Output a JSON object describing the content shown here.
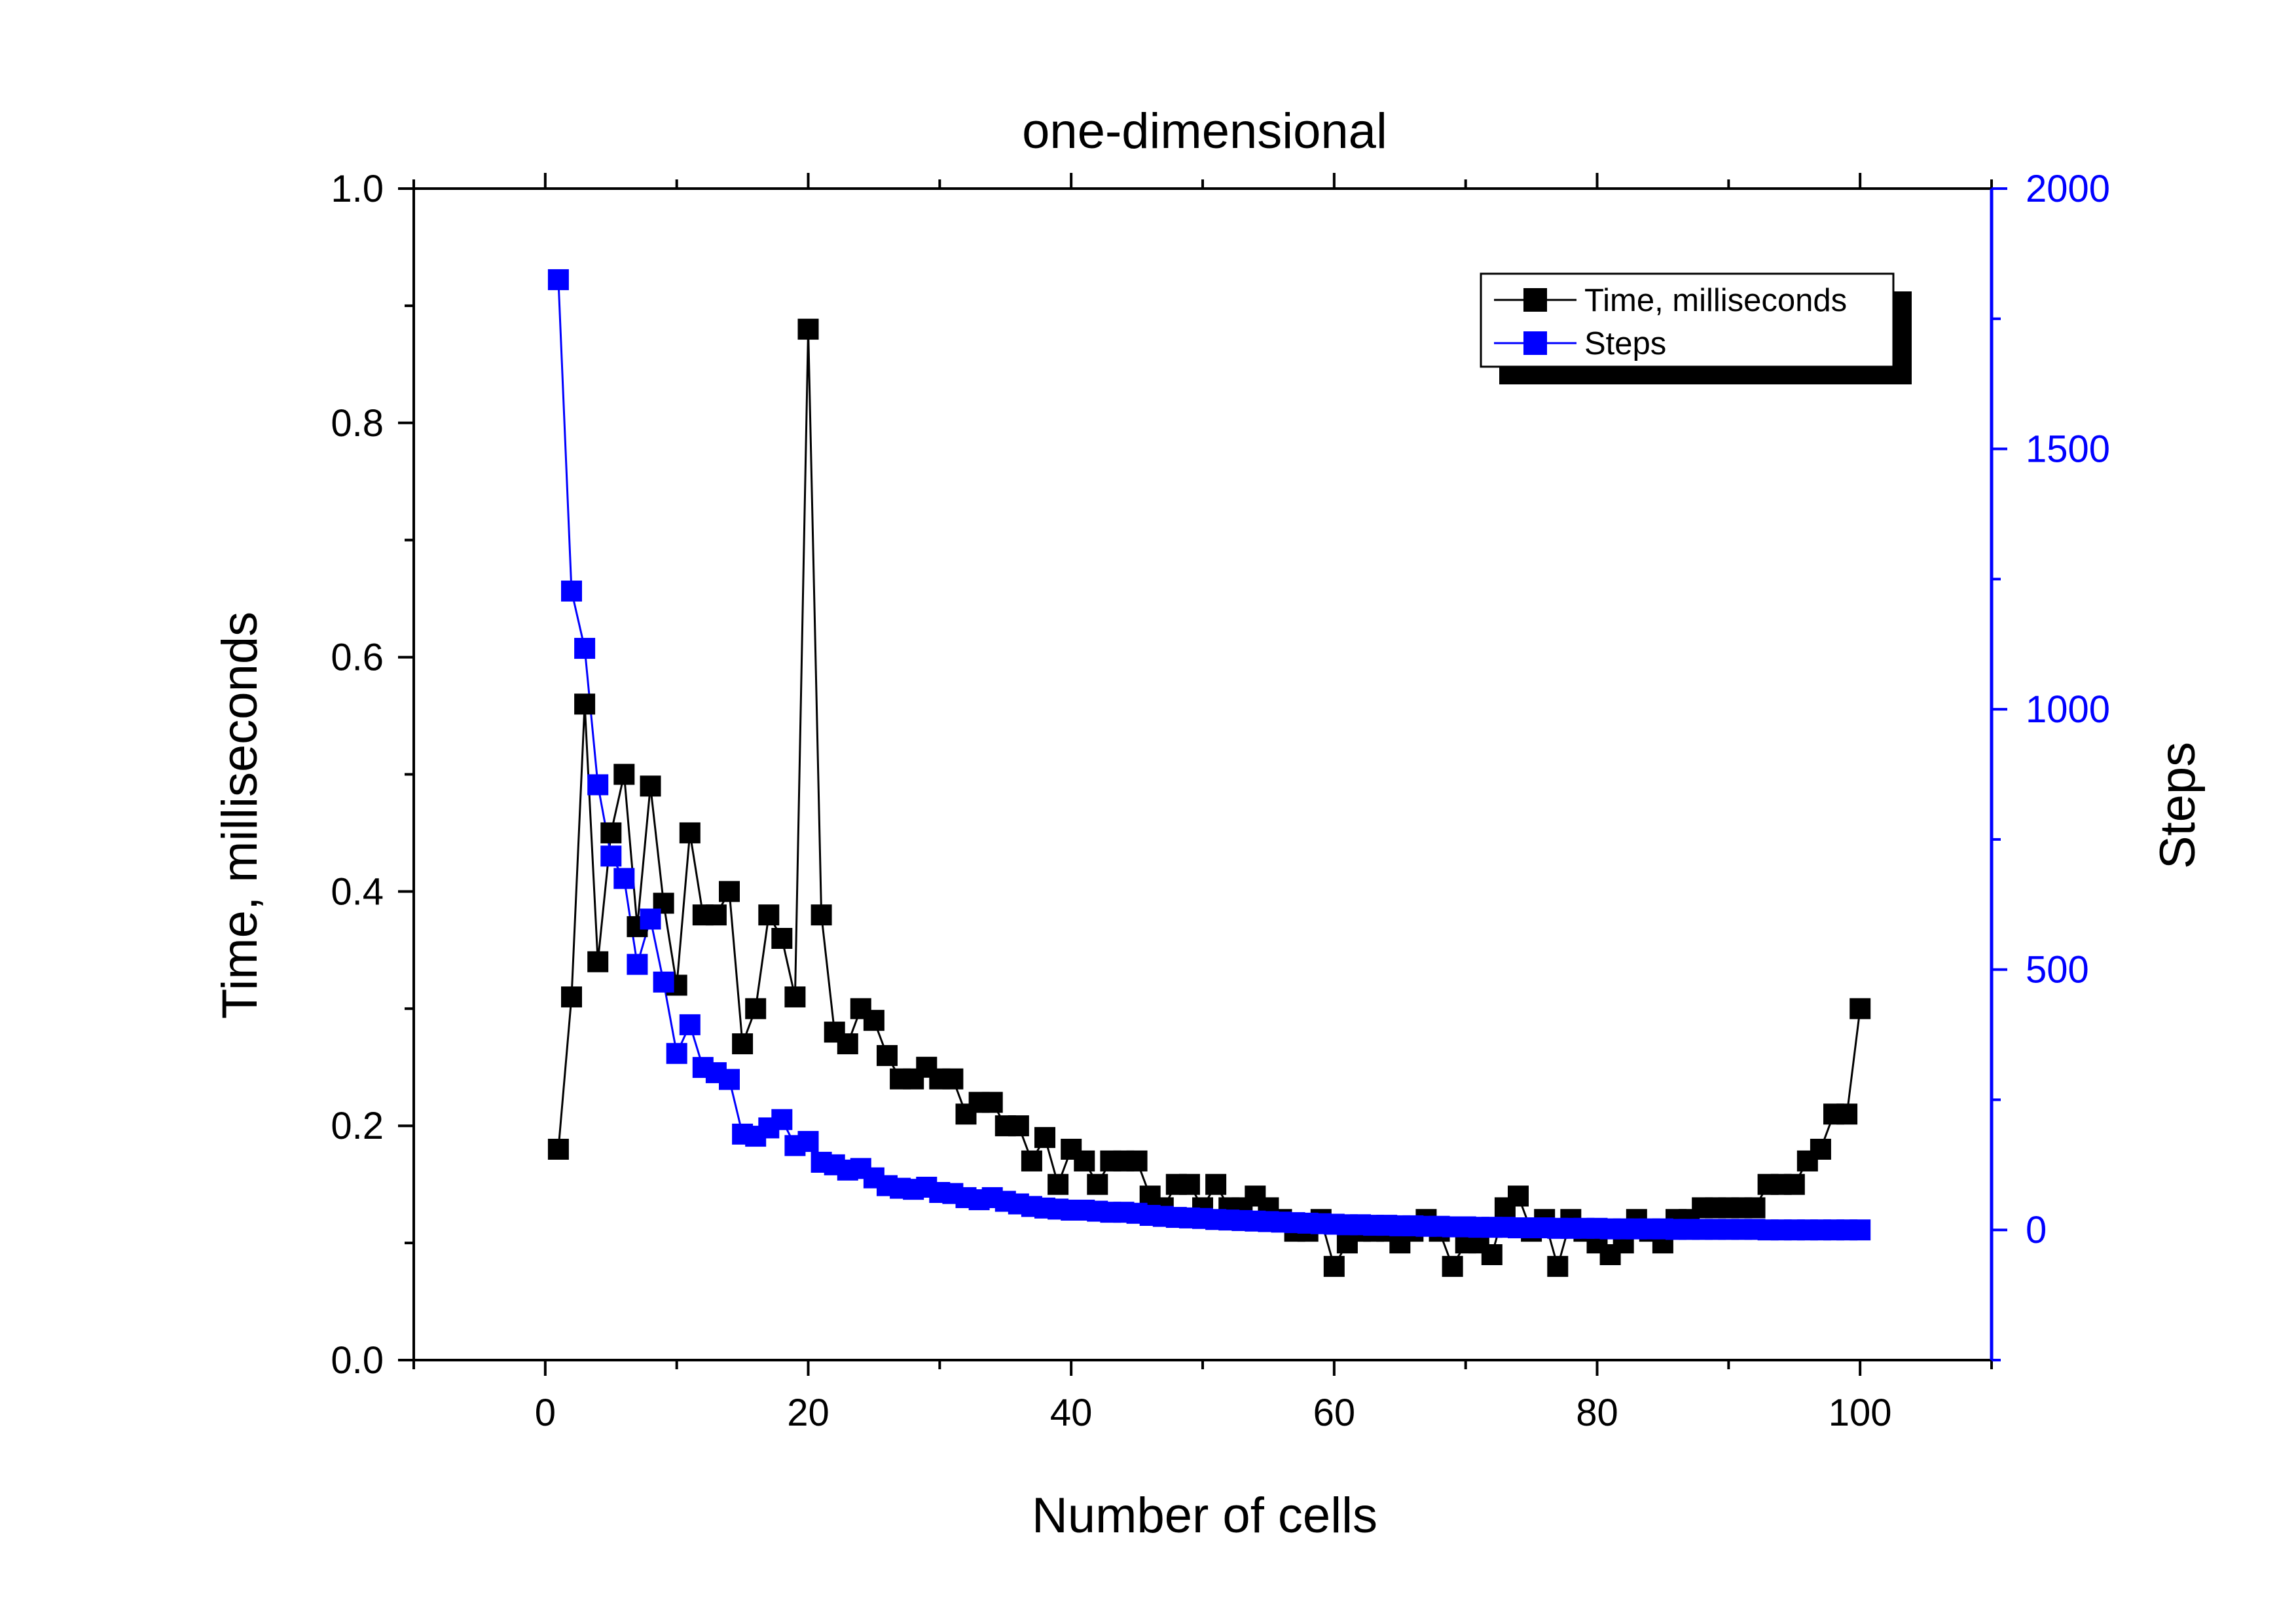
{
  "chart_data": {
    "type": "scatter",
    "title": "one-dimensional",
    "xlabel": "Number of cells",
    "ylabel": "Time, milliseconds",
    "y2label": "Steps",
    "xlim": [
      -10,
      110
    ],
    "ylim": [
      0.0,
      1.0
    ],
    "y2lim": [
      -250,
      2000
    ],
    "x_ticks": [
      "0",
      "20",
      "40",
      "60",
      "80",
      "100"
    ],
    "x_tick_values": [
      0,
      20,
      40,
      60,
      80,
      100
    ],
    "y_ticks": [
      "0.0",
      "0.2",
      "0.4",
      "0.6",
      "0.8",
      "1.0"
    ],
    "y_tick_values": [
      0.0,
      0.2,
      0.4,
      0.6,
      0.8,
      1.0
    ],
    "y2_ticks": [
      "0",
      "500",
      "1000",
      "1500",
      "2000"
    ],
    "y2_tick_values": [
      0,
      500,
      1000,
      1500,
      2000
    ],
    "grid": false,
    "legend_position": "top-right",
    "colors": {
      "time": "#000000",
      "steps": "#0000ff",
      "right_axis": "#0000ff"
    },
    "x": [
      1,
      2,
      3,
      4,
      5,
      6,
      7,
      8,
      9,
      10,
      11,
      12,
      13,
      14,
      15,
      16,
      17,
      18,
      19,
      20,
      21,
      22,
      23,
      24,
      25,
      26,
      27,
      28,
      29,
      30,
      31,
      32,
      33,
      34,
      35,
      36,
      37,
      38,
      39,
      40,
      41,
      42,
      43,
      44,
      45,
      46,
      47,
      48,
      49,
      50,
      51,
      52,
      53,
      54,
      55,
      56,
      57,
      58,
      59,
      60,
      61,
      62,
      63,
      64,
      65,
      66,
      67,
      68,
      69,
      70,
      71,
      72,
      73,
      74,
      75,
      76,
      77,
      78,
      79,
      80,
      81,
      82,
      83,
      84,
      85,
      86,
      87,
      88,
      89,
      90,
      91,
      92,
      93,
      94,
      95,
      96,
      97,
      98,
      99,
      100
    ],
    "series": [
      {
        "name": "Time, milliseconds",
        "axis": "left",
        "values": [
          0.18,
          0.31,
          0.56,
          0.34,
          0.45,
          0.5,
          0.37,
          0.49,
          0.39,
          0.32,
          0.45,
          0.38,
          0.38,
          0.4,
          0.27,
          0.3,
          0.38,
          0.36,
          0.31,
          0.88,
          0.38,
          0.28,
          0.27,
          0.3,
          0.29,
          0.26,
          0.24,
          0.24,
          0.25,
          0.24,
          0.24,
          0.21,
          0.22,
          0.22,
          0.2,
          0.2,
          0.17,
          0.19,
          0.15,
          0.18,
          0.17,
          0.15,
          0.17,
          0.17,
          0.17,
          0.14,
          0.13,
          0.15,
          0.15,
          0.13,
          0.15,
          0.13,
          0.13,
          0.14,
          0.13,
          0.12,
          0.11,
          0.11,
          0.12,
          0.08,
          0.1,
          0.11,
          0.11,
          0.11,
          0.1,
          0.11,
          0.12,
          0.11,
          0.08,
          0.1,
          0.1,
          0.09,
          0.13,
          0.14,
          0.11,
          0.12,
          0.08,
          0.12,
          0.11,
          0.1,
          0.09,
          0.1,
          0.12,
          0.11,
          0.1,
          0.12,
          0.12,
          0.13,
          0.13,
          0.13,
          0.13,
          0.13,
          0.15,
          0.15,
          0.15,
          0.17,
          0.18,
          0.21,
          0.21,
          0.3
        ]
      },
      {
        "name": "Steps",
        "axis": "right",
        "values": [
          1825,
          1227,
          1117,
          855,
          718,
          675,
          510,
          597,
          476,
          339,
          394,
          312,
          302,
          289,
          184,
          180,
          196,
          212,
          162,
          170,
          130,
          125,
          115,
          118,
          100,
          85,
          80,
          78,
          82,
          72,
          70,
          62,
          58,
          62,
          55,
          50,
          45,
          42,
          40,
          38,
          38,
          36,
          34,
          34,
          32,
          28,
          26,
          24,
          23,
          22,
          20,
          19,
          18,
          17,
          16,
          15,
          14,
          13,
          12,
          11,
          10,
          10,
          9,
          9,
          8,
          8,
          7,
          7,
          6,
          6,
          5,
          5,
          5,
          4,
          4,
          4,
          3,
          3,
          3,
          3,
          2,
          2,
          2,
          2,
          2,
          1,
          1,
          1,
          1,
          1,
          1,
          1,
          0,
          0,
          0,
          0,
          0,
          0,
          0,
          0
        ]
      }
    ]
  }
}
